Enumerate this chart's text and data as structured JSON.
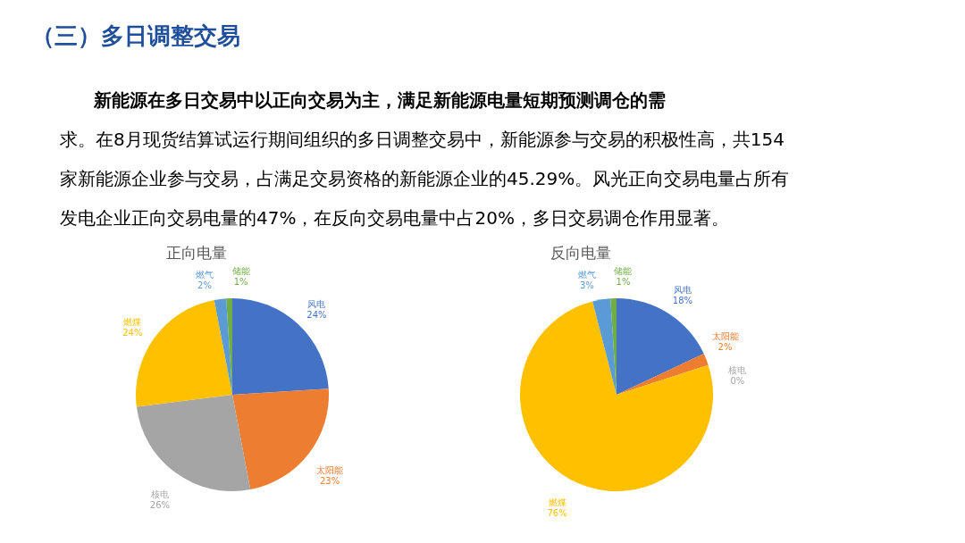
{
  "chart_data": [
    {
      "type": "other",
      "title": "（三）多日调整交易",
      "annotations": [
        "新能源在多日交易中以正向交易为主，满足新能源电量短期预测调仓的需",
        "求。在8月现货结算试运行期间组织的多日调整交易中，新能源参与交易的积极性高，共154",
        "家新能源企业参与交易，占满足交易资格的新能源企业的45.29%。风光正向交易电量占所有",
        "发电企业正向交易电量的47%，在反向交易电量中占20%，多日交易调仓作用显著。"
      ]
    },
    {
      "type": "pie",
      "title": "正向电量",
      "categories": [
        "风电",
        "太阳能",
        "核电",
        "燃煤",
        "燃气",
        "储能"
      ],
      "values": [
        24,
        23,
        26,
        24,
        2,
        1
      ],
      "value_labels": [
        "24%",
        "23%",
        "26%",
        "24%",
        "2%",
        "1%"
      ],
      "colors": [
        "#4472c4",
        "#ed7d31",
        "#a5a5a5",
        "#ffc000",
        "#5b9bd5",
        "#70ad47"
      ]
    },
    {
      "type": "pie",
      "title": "反向电量",
      "categories": [
        "风电",
        "太阳能",
        "核电",
        "燃煤",
        "燃气",
        "储能"
      ],
      "values": [
        18,
        2,
        0,
        76,
        3,
        1
      ],
      "value_labels": [
        "18%",
        "2%",
        "0%",
        "76%",
        "3%",
        "1%"
      ],
      "colors": [
        "#4472c4",
        "#ed7d31",
        "#a5a5a5",
        "#ffc000",
        "#5b9bd5",
        "#70ad47"
      ]
    }
  ]
}
